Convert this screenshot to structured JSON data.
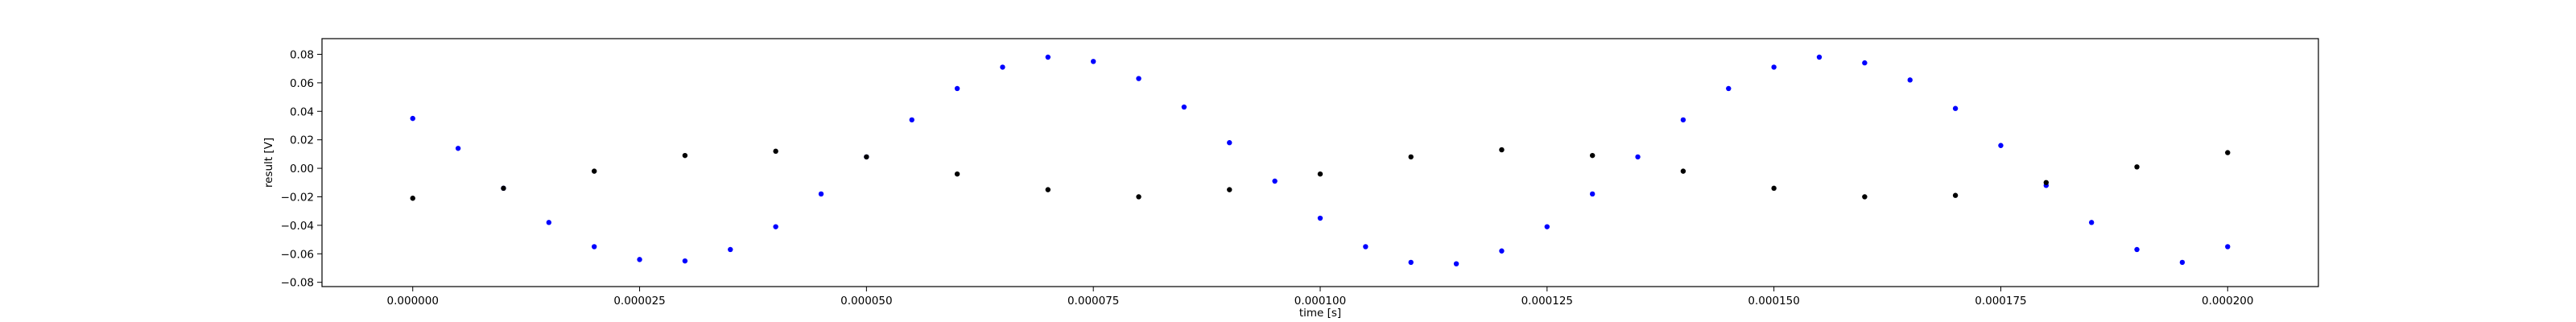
{
  "chart_data": {
    "type": "scatter",
    "title": "",
    "xlabel": "time [s]",
    "ylabel": "result [V]",
    "xlim": [
      -1e-05,
      0.00021
    ],
    "ylim": [
      -0.083,
      0.091
    ],
    "grid": false,
    "legend": "none",
    "x_ticks": [
      0.0,
      2.5e-05,
      5e-05,
      7.5e-05,
      0.0001,
      0.000125,
      0.00015,
      0.000175,
      0.0002
    ],
    "x_tick_labels": [
      "0.000000",
      "0.000025",
      "0.000050",
      "0.000075",
      "0.000100",
      "0.000125",
      "0.000150",
      "0.000175",
      "0.000200"
    ],
    "y_ticks": [
      -0.08,
      -0.06,
      -0.04,
      -0.02,
      0.0,
      0.02,
      0.04,
      0.06,
      0.08
    ],
    "y_tick_labels": [
      "−0.08",
      "−0.06",
      "−0.04",
      "−0.02",
      "0.00",
      "0.02",
      "0.04",
      "0.06",
      "0.08"
    ],
    "series": [
      {
        "color": "#0000ff",
        "x": [
          0.0,
          5e-06,
          1e-05,
          1.5e-05,
          2e-05,
          2.5e-05,
          3e-05,
          3.5e-05,
          4e-05,
          4.5e-05,
          5e-05,
          5.5e-05,
          6e-05,
          6.5e-05,
          7e-05,
          7.5e-05,
          8e-05,
          8.5e-05,
          9e-05,
          9.5e-05,
          0.0001,
          0.000105,
          0.00011,
          0.000115,
          0.00012,
          0.000125,
          0.00013,
          0.000135,
          0.00014,
          0.000145,
          0.00015,
          0.000155,
          0.00016,
          0.000165,
          0.00017,
          0.000175,
          0.00018,
          0.000185,
          0.00019,
          0.000195,
          0.0002
        ],
        "y": [
          0.035,
          0.014,
          -0.014,
          -0.038,
          -0.055,
          -0.064,
          -0.065,
          -0.057,
          -0.041,
          -0.018,
          0.008,
          0.034,
          0.056,
          0.071,
          0.078,
          0.075,
          0.063,
          0.043,
          0.018,
          -0.009,
          -0.035,
          -0.055,
          -0.066,
          -0.067,
          -0.058,
          -0.041,
          -0.018,
          0.008,
          0.034,
          0.056,
          0.071,
          0.078,
          0.074,
          0.062,
          0.042,
          0.016,
          -0.012,
          -0.038,
          -0.057,
          -0.066,
          -0.055
        ]
      },
      {
        "color": "#000000",
        "x": [
          0.0,
          1e-05,
          2e-05,
          3e-05,
          4e-05,
          5e-05,
          6e-05,
          7e-05,
          8e-05,
          9e-05,
          0.0001,
          0.00011,
          0.00012,
          0.00013,
          0.00014,
          0.00015,
          0.00016,
          0.00017,
          0.00018,
          0.00019,
          0.0002
        ],
        "y": [
          -0.021,
          -0.014,
          -0.002,
          0.009,
          0.012,
          0.008,
          -0.004,
          -0.015,
          -0.02,
          -0.015,
          -0.004,
          0.008,
          0.013,
          0.009,
          -0.002,
          -0.014,
          -0.02,
          -0.019,
          -0.01,
          0.001,
          0.011
        ]
      }
    ]
  }
}
